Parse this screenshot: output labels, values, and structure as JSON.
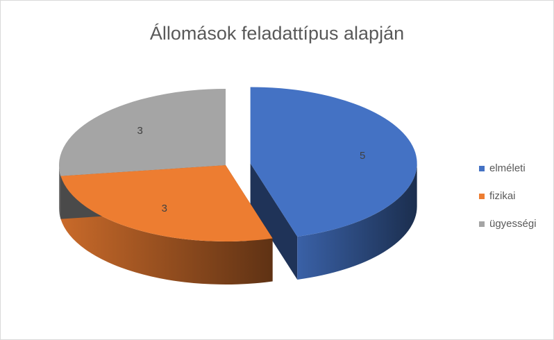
{
  "chart_data": {
    "type": "pie",
    "title": "Állomások feladattípus alapján",
    "categories": [
      "elméleti",
      "fizikai",
      "ügyességi"
    ],
    "values": [
      5,
      3,
      3
    ],
    "colors": [
      "#4472c4",
      "#ed7d31",
      "#a5a5a5"
    ],
    "legend": "right"
  }
}
